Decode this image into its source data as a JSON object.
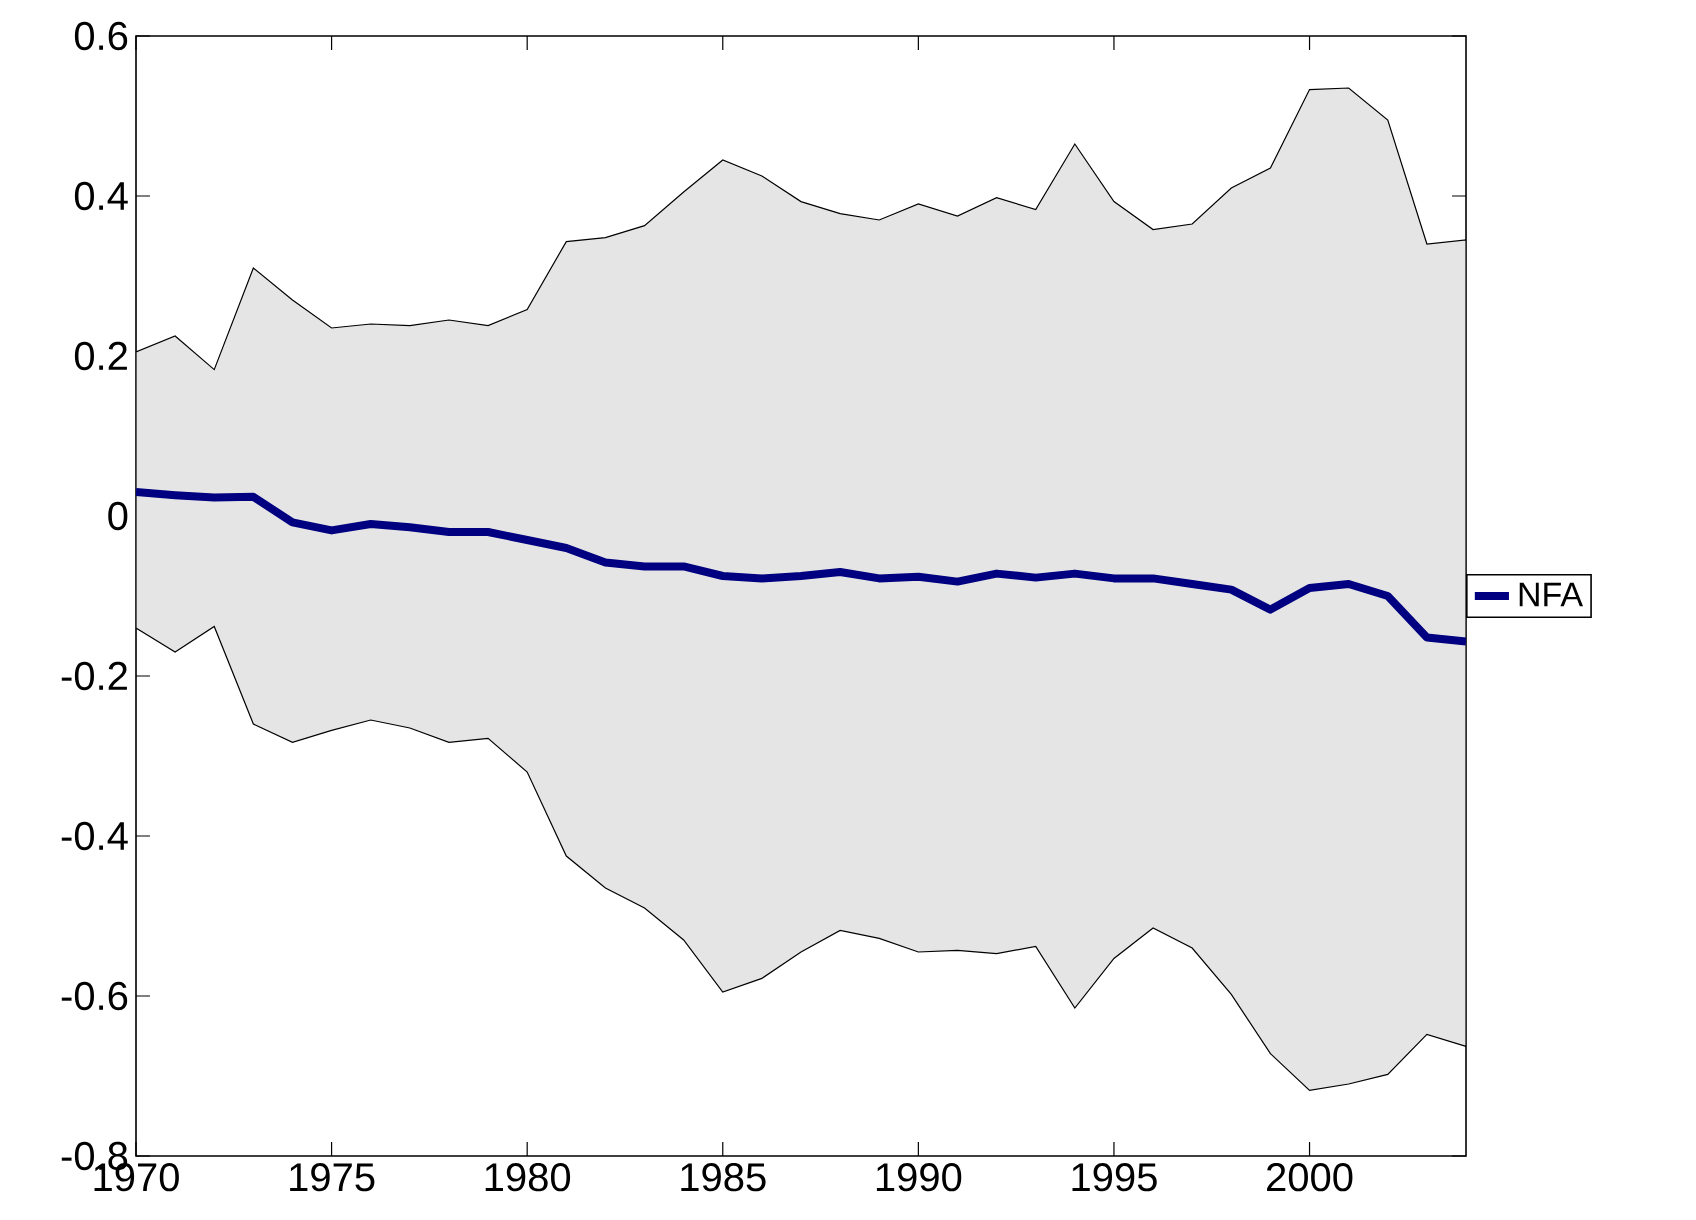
{
  "chart_data": {
    "type": "line",
    "x": [
      1970,
      1971,
      1972,
      1973,
      1974,
      1975,
      1976,
      1977,
      1978,
      1979,
      1980,
      1981,
      1982,
      1983,
      1984,
      1985,
      1986,
      1987,
      1988,
      1989,
      1990,
      1991,
      1992,
      1993,
      1994,
      1995,
      1996,
      1997,
      1998,
      1999,
      2000,
      2001,
      2002,
      2003,
      2004
    ],
    "series": [
      {
        "name": "NFA",
        "color": "#000080",
        "values": [
          0.03,
          0.026,
          0.023,
          0.024,
          -0.008,
          -0.018,
          -0.01,
          -0.014,
          -0.02,
          -0.02,
          -0.03,
          -0.04,
          -0.058,
          -0.063,
          -0.063,
          -0.075,
          -0.078,
          -0.075,
          -0.07,
          -0.078,
          -0.076,
          -0.082,
          -0.072,
          -0.077,
          -0.072,
          -0.078,
          -0.078,
          -0.085,
          -0.092,
          -0.117,
          -0.09,
          -0.085,
          -0.1,
          -0.152,
          -0.157
        ],
        "lower": [
          -0.14,
          -0.17,
          -0.138,
          -0.26,
          -0.283,
          -0.268,
          -0.255,
          -0.265,
          -0.283,
          -0.278,
          -0.32,
          -0.425,
          -0.465,
          -0.49,
          -0.53,
          -0.595,
          -0.578,
          -0.545,
          -0.518,
          -0.528,
          -0.545,
          -0.543,
          -0.547,
          -0.538,
          -0.615,
          -0.553,
          -0.515,
          -0.54,
          -0.598,
          -0.672,
          -0.718,
          -0.71,
          -0.698,
          -0.648,
          -0.663
        ],
        "upper": [
          0.205,
          0.225,
          0.183,
          0.31,
          0.27,
          0.235,
          0.24,
          0.238,
          0.245,
          0.238,
          0.258,
          0.343,
          0.348,
          0.363,
          0.405,
          0.445,
          0.425,
          0.393,
          0.378,
          0.37,
          0.39,
          0.375,
          0.398,
          0.383,
          0.465,
          0.393,
          0.358,
          0.365,
          0.41,
          0.435,
          0.533,
          0.535,
          0.495,
          0.34,
          0.345
        ]
      }
    ],
    "xlim": [
      1970,
      2004
    ],
    "xticks": [
      1970,
      1975,
      1980,
      1985,
      1990,
      1995,
      2000
    ],
    "ylim": [
      -0.8,
      0.6
    ],
    "yticks": [
      -0.8,
      -0.6,
      -0.4,
      -0.2,
      0,
      0.2,
      0.4,
      0.6
    ],
    "grid": false,
    "legend": "right",
    "marker": "none",
    "line_style": "solid"
  }
}
